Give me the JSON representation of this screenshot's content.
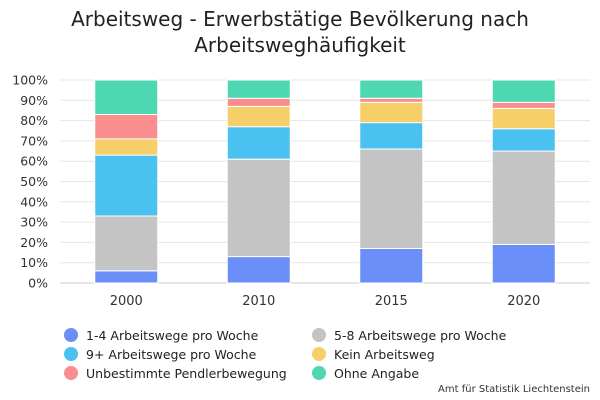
{
  "title_line1": "Arbeitsweg - Erwerbstätige Bevölkerung nach",
  "title_line2": "Arbeitsweghäufigkeit",
  "credit": "Amt für Statistik Liechtenstein",
  "chart_data": {
    "type": "bar",
    "stacked": true,
    "title": "Arbeitsweg - Erwerbstätige Bevölkerung nach Arbeitsweghäufigkeit",
    "categories": [
      "2000",
      "2010",
      "2015",
      "2020"
    ],
    "ylim": [
      0,
      100
    ],
    "y_ticks": [
      "0%",
      "10%",
      "20%",
      "30%",
      "40%",
      "50%",
      "60%",
      "70%",
      "80%",
      "90%",
      "100%"
    ],
    "grid": true,
    "legend_position": "bottom",
    "series": [
      {
        "name": "1-4 Arbeitswege pro Woche",
        "color": "#6b8ff8",
        "values": [
          6,
          13,
          17,
          19
        ]
      },
      {
        "name": "5-8 Arbeitswege pro Woche",
        "color": "#c4c4c4",
        "values": [
          27,
          48,
          49,
          46
        ]
      },
      {
        "name": "9+ Arbeitswege pro Woche",
        "color": "#4bc1f2",
        "values": [
          30,
          16,
          13,
          11
        ]
      },
      {
        "name": "Kein Arbeitsweg",
        "color": "#f6cf68",
        "values": [
          8,
          10,
          10,
          10
        ]
      },
      {
        "name": "Unbestimmte Pendlerbewegung",
        "color": "#fa8e8e",
        "values": [
          12,
          4,
          2,
          3
        ]
      },
      {
        "name": "Ohne Angabe",
        "color": "#4ed8b1",
        "values": [
          17,
          9,
          9,
          11
        ]
      }
    ]
  }
}
